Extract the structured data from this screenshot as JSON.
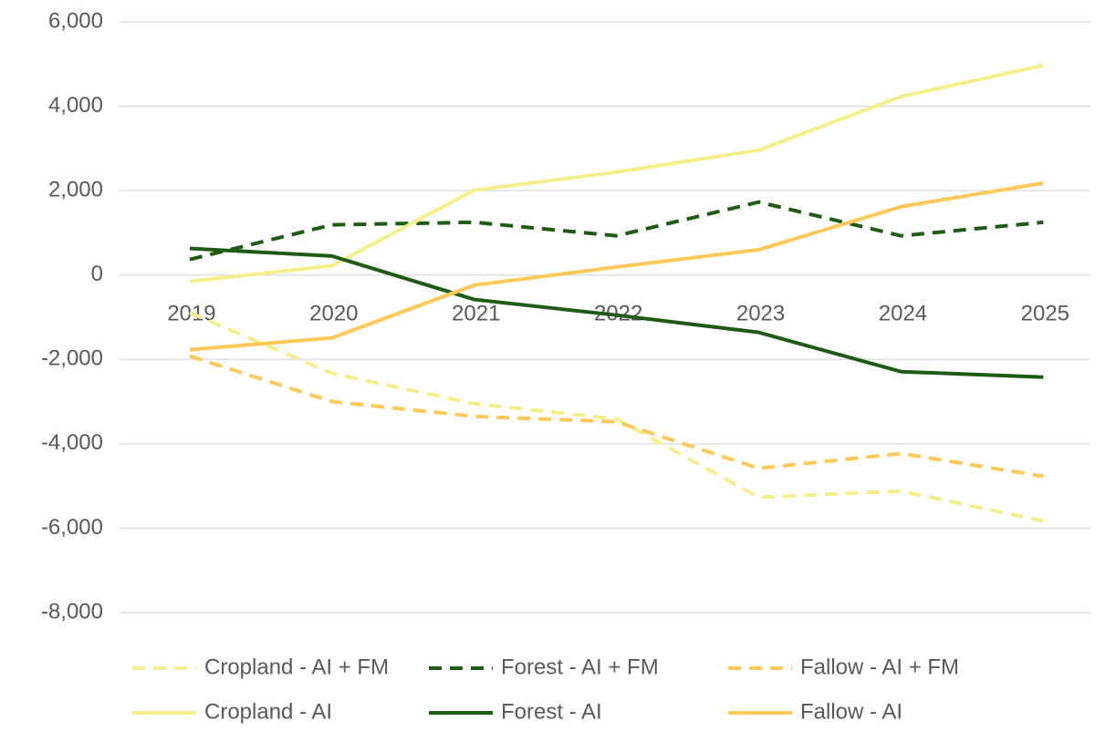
{
  "chart_data": {
    "type": "line",
    "categories": [
      "2019",
      "2020",
      "2021",
      "2022",
      "2023",
      "2024",
      "2025"
    ],
    "series": [
      {
        "name": "Cropland - AI + FM",
        "color": "#f5ef8a",
        "dashed": true,
        "values": [
          -890,
          -2330,
          -3050,
          -3410,
          -5270,
          -5120,
          -5830
        ]
      },
      {
        "name": "Forest - AI + FM",
        "color": "#1e5c14",
        "dashed": true,
        "values": [
          370,
          1190,
          1250,
          930,
          1730,
          930,
          1250
        ]
      },
      {
        "name": "Fallow - AI + FM",
        "color": "#ffc857",
        "dashed": true,
        "values": [
          -1920,
          -3000,
          -3350,
          -3480,
          -4580,
          -4230,
          -4770
        ]
      },
      {
        "name": "Cropland - AI",
        "color": "#f5ef8a",
        "dashed": false,
        "values": [
          -150,
          220,
          2010,
          2440,
          2960,
          4230,
          4970
        ]
      },
      {
        "name": "Forest - AI",
        "color": "#1e5c14",
        "dashed": false,
        "values": [
          630,
          450,
          -580,
          -950,
          -1360,
          -2290,
          -2420
        ]
      },
      {
        "name": "Fallow - AI",
        "color": "#ffc857",
        "dashed": false,
        "values": [
          -1770,
          -1490,
          -240,
          190,
          600,
          1620,
          2180
        ]
      }
    ],
    "ylim": [
      -8000,
      6000
    ],
    "yticks": [
      {
        "value": -8000,
        "label": "-8,000"
      },
      {
        "value": -6000,
        "label": "-6,000"
      },
      {
        "value": -4000,
        "label": "-4,000"
      },
      {
        "value": -2000,
        "label": "-2,000"
      },
      0,
      {
        "value": 2000,
        "label": "2,000"
      },
      {
        "value": 4000,
        "label": "4,000"
      },
      {
        "value": 6000,
        "label": "6,000"
      }
    ],
    "grid": true,
    "legend": "bottom"
  }
}
